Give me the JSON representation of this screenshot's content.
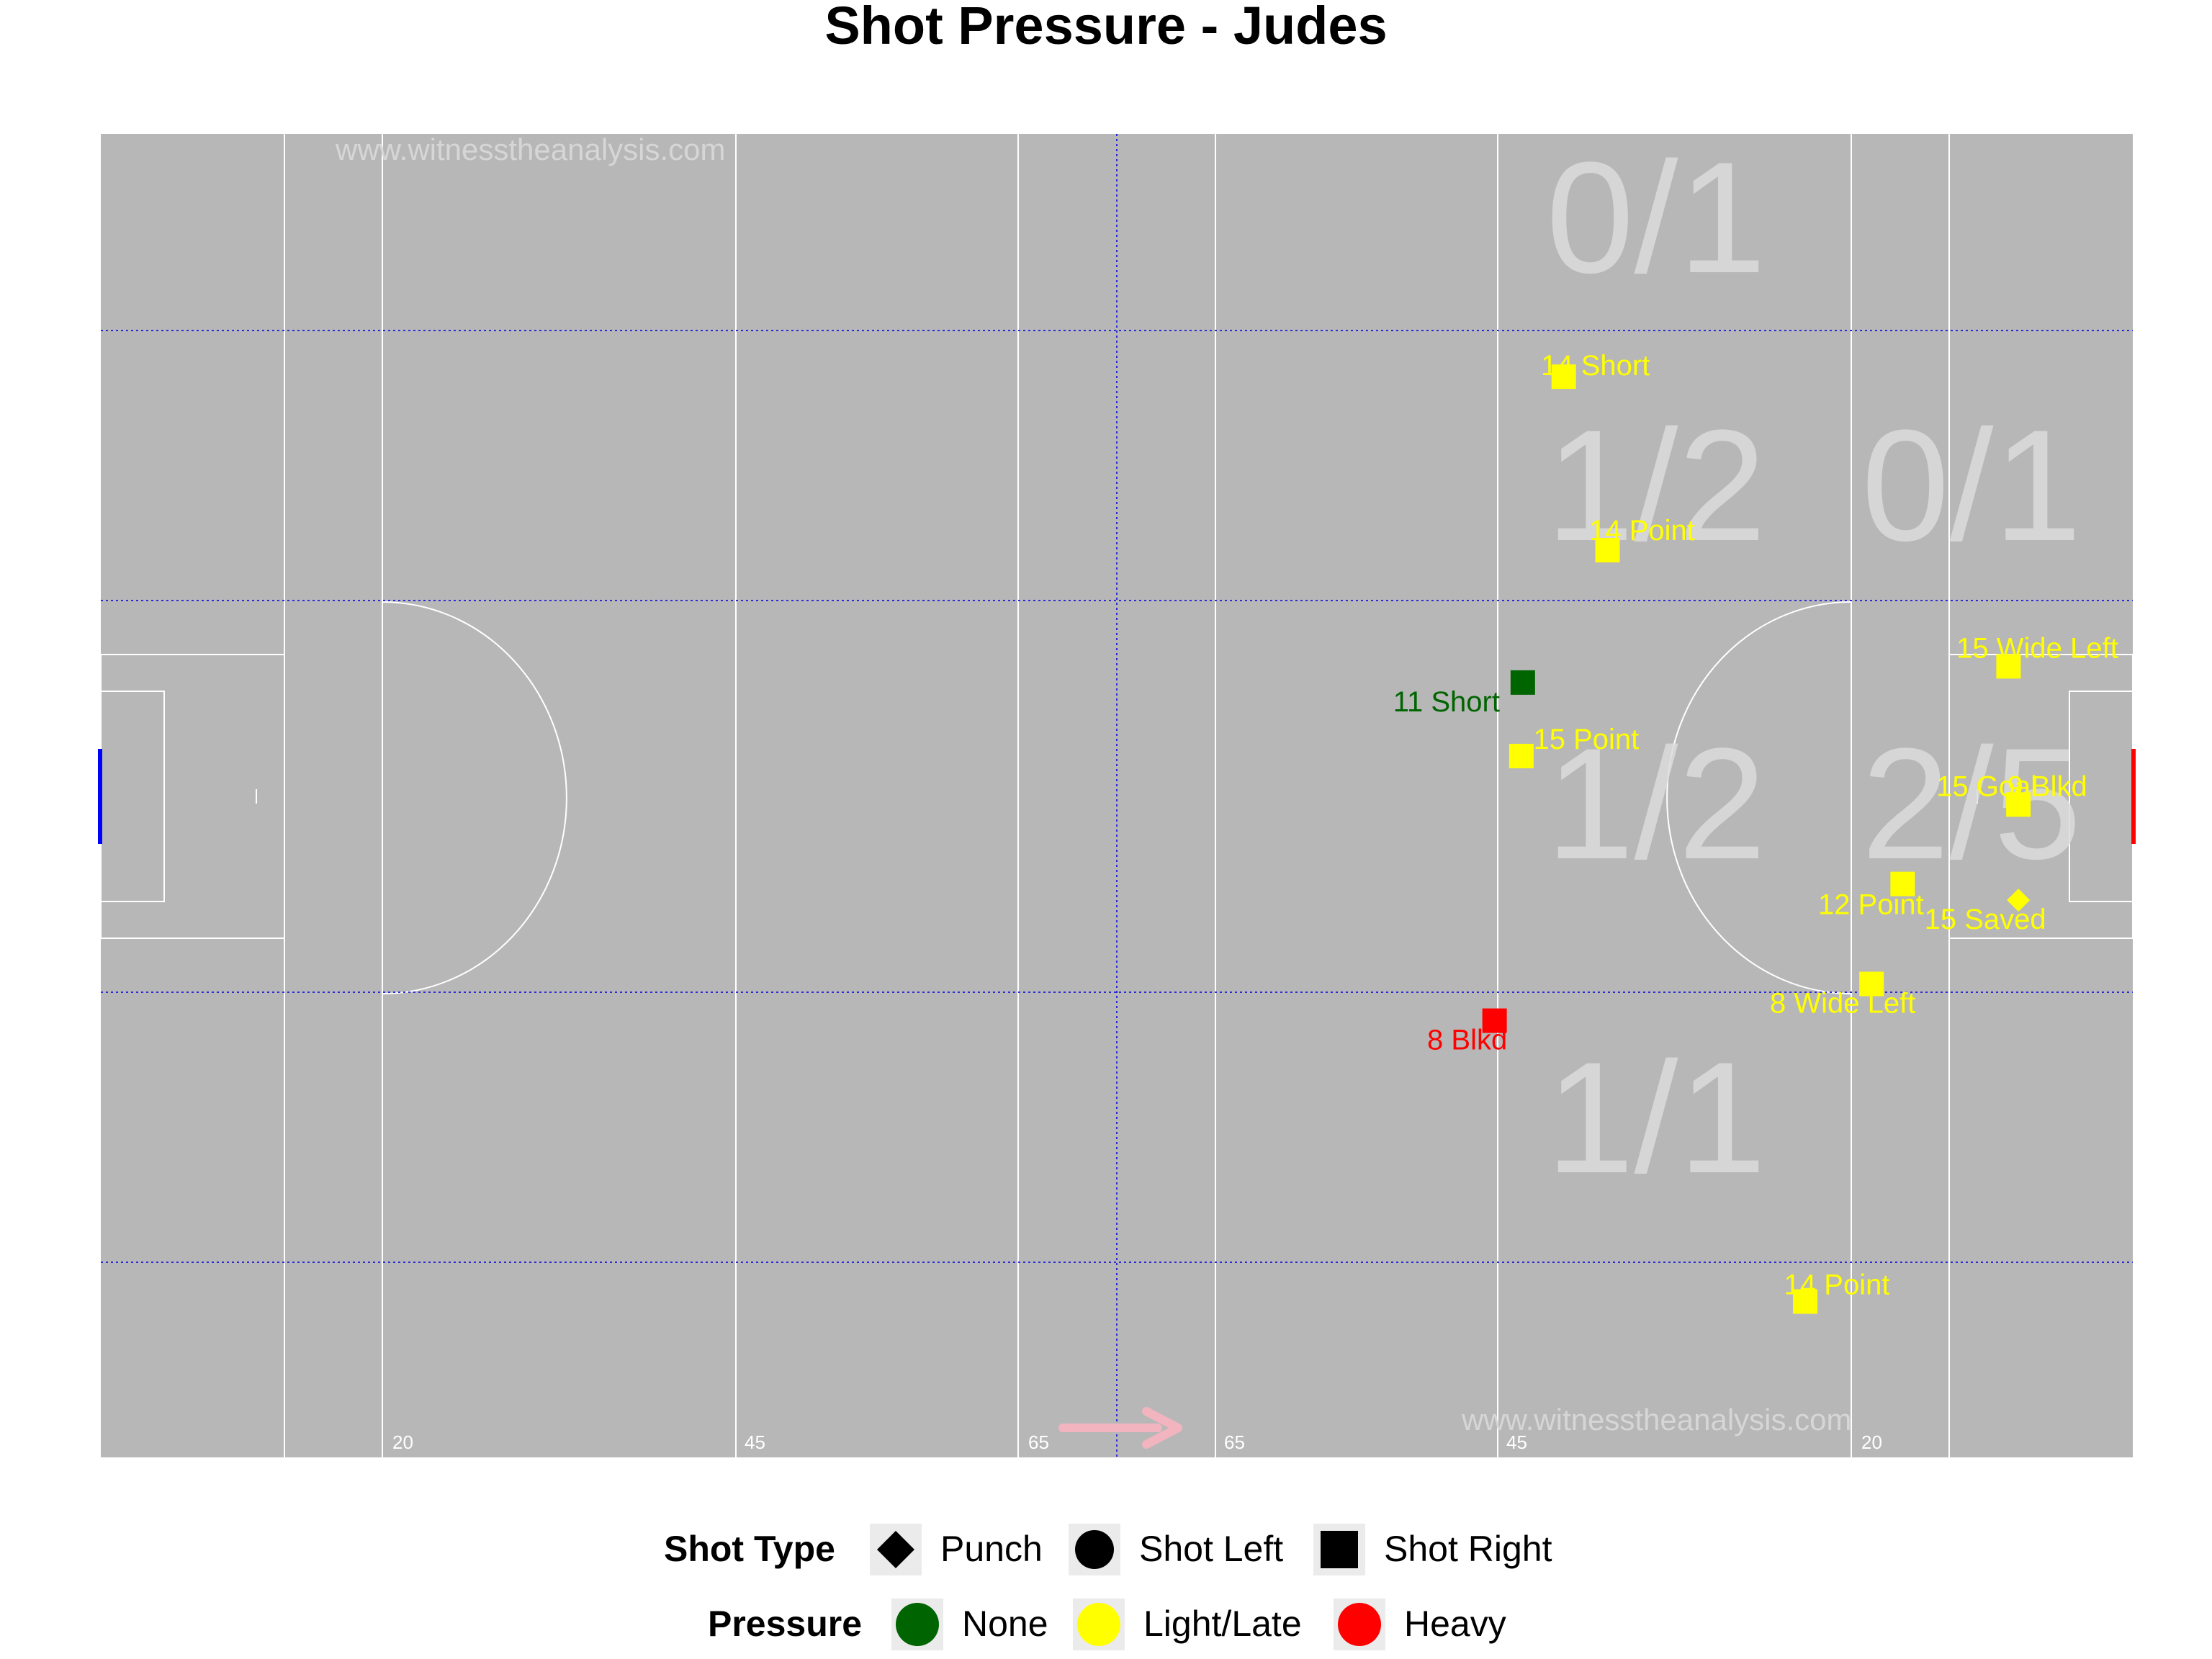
{
  "title": "Shot Pressure - Judes",
  "watermark": "www.witnesstheanalysis.com",
  "colors": {
    "pitch": "#b7b7b7",
    "lines": "#ffffff",
    "zone_lines": "#2b2bd6",
    "zone_text": "#dcdcdc",
    "pressure_none": "#006400",
    "pressure_light": "#ffff00",
    "pressure_heavy": "#ff0000",
    "left_goal": "#0000ff",
    "right_goal": "#ff0000",
    "direction_arrow": "#f2b5c0"
  },
  "pitch_markers": [
    "20",
    "45",
    "65",
    "65",
    "45",
    "20"
  ],
  "legend": {
    "shot_type_title": "Shot Type",
    "shot_types": [
      {
        "label": "Punch",
        "shape": "diamond-icon"
      },
      {
        "label": "Shot Left",
        "shape": "circle-icon"
      },
      {
        "label": "Shot Right",
        "shape": "square-icon"
      }
    ],
    "pressure_title": "Pressure",
    "pressures": [
      {
        "label": "None",
        "color": "#006400"
      },
      {
        "label": "Light/Late",
        "color": "#ffff00"
      },
      {
        "label": "Heavy",
        "color": "#ff0000"
      }
    ]
  },
  "chart_data": {
    "type": "scatter",
    "title": "Shot Pressure - Judes",
    "direction": "attacking right",
    "zones": [
      {
        "label": "0/1",
        "row": 1,
        "col": "D"
      },
      {
        "label": "1/2",
        "row": 2,
        "col": "D"
      },
      {
        "label": "0/1",
        "row": 2,
        "col": "C"
      },
      {
        "label": "1/2",
        "row": 3,
        "col": "D"
      },
      {
        "label": "2/5",
        "row": 3,
        "col": "C"
      },
      {
        "label": "1/1",
        "row": 4,
        "col": "D"
      }
    ],
    "shots": [
      {
        "label": "14 Short",
        "x": 40.3,
        "y": 73.5,
        "type": "Shot Right",
        "pressure": "Light/Late"
      },
      {
        "label": "14 Point",
        "x": 37.2,
        "y": 61.7,
        "type": "Shot Right",
        "pressure": "Light/Late"
      },
      {
        "label": "11 Short",
        "x": 43.2,
        "y": 52.7,
        "type": "Shot Right",
        "pressure": "None"
      },
      {
        "label": "15 Point",
        "x": 43.3,
        "y": 47.7,
        "type": "Shot Right",
        "pressure": "Light/Late"
      },
      {
        "label": "15 Wide Left",
        "x": 8.8,
        "y": 53.8,
        "type": "Shot Right",
        "pressure": "Light/Late"
      },
      {
        "label": "15 Goal",
        "x": 8.1,
        "y": 44.4,
        "type": "Shot Right",
        "pressure": "Light/Late"
      },
      {
        "label": "9 Blkd",
        "x": 8.1,
        "y": 44.4,
        "type": "Shot Left",
        "pressure": "Light/Late"
      },
      {
        "label": "12 Point",
        "x": 16.3,
        "y": 39.0,
        "type": "Shot Right",
        "pressure": "Light/Late"
      },
      {
        "label": "15 Saved",
        "x": 8.1,
        "y": 37.9,
        "type": "Punch",
        "pressure": "Light/Late"
      },
      {
        "label": "8 Wide Left",
        "x": 18.5,
        "y": 32.2,
        "type": "Shot Right",
        "pressure": "Light/Late"
      },
      {
        "label": "8 Blkd",
        "x": 45.2,
        "y": 29.7,
        "type": "Shot Right",
        "pressure": "Heavy"
      },
      {
        "label": "14 Point",
        "x": 23.2,
        "y": 10.6,
        "type": "Shot Right",
        "pressure": "Light/Late"
      }
    ]
  }
}
